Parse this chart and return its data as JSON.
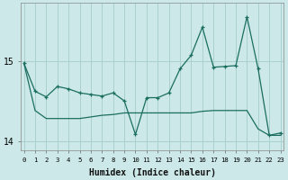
{
  "xlabel": "Humidex (Indice chaleur)",
  "ylabel": "",
  "bg_color": "#cce8e8",
  "grid_color": "#aad0d0",
  "line_color": "#1a6e60",
  "x_ticks": [
    0,
    1,
    2,
    3,
    4,
    5,
    6,
    7,
    8,
    9,
    10,
    11,
    12,
    13,
    14,
    15,
    16,
    17,
    18,
    19,
    20,
    21,
    22,
    23
  ],
  "y_ticks": [
    14,
    15
  ],
  "xlim": [
    -0.3,
    23.3
  ],
  "ylim": [
    13.88,
    15.72
  ],
  "series1_x": [
    0,
    1,
    2,
    3,
    4,
    5,
    6,
    7,
    8,
    9,
    10,
    11,
    12,
    13,
    14,
    15,
    16,
    17,
    18,
    19,
    20,
    21,
    22,
    23
  ],
  "series1_y": [
    14.97,
    14.62,
    14.55,
    14.68,
    14.65,
    14.6,
    14.58,
    14.56,
    14.6,
    14.5,
    14.08,
    14.54,
    14.54,
    14.6,
    14.9,
    15.07,
    15.42,
    14.92,
    14.93,
    14.94,
    15.55,
    14.9,
    14.07,
    14.1
  ],
  "series2_x": [
    0,
    1,
    2,
    3,
    4,
    5,
    6,
    7,
    8,
    9,
    10,
    11,
    12,
    13,
    14,
    15,
    16,
    17,
    18,
    19,
    20,
    21,
    22,
    23
  ],
  "series2_y": [
    14.97,
    14.38,
    14.28,
    14.28,
    14.28,
    14.28,
    14.3,
    14.32,
    14.33,
    14.35,
    14.35,
    14.35,
    14.35,
    14.35,
    14.35,
    14.35,
    14.37,
    14.38,
    14.38,
    14.38,
    14.38,
    14.15,
    14.07,
    14.07
  ]
}
